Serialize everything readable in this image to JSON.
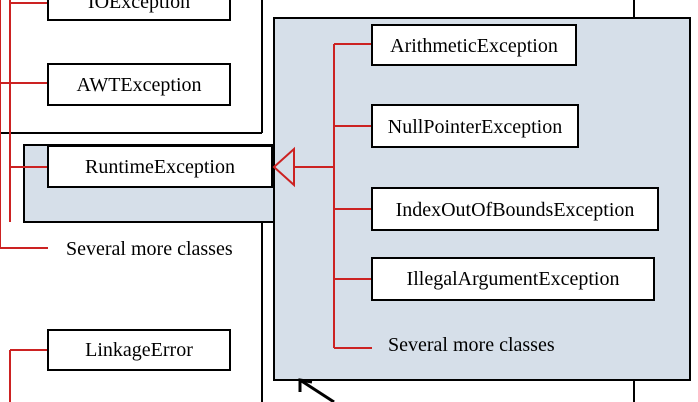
{
  "colors": {
    "connector": "#cc2222",
    "panel_fill": "#d6dfe9",
    "border": "#000000",
    "box_fill": "#ffffff"
  },
  "left_tree": {
    "io_exception": "IOException",
    "awt_exception": "AWTException",
    "runtime_exception": "RuntimeException",
    "several_more": "Several more classes",
    "linkage_error": "LinkageError"
  },
  "runtime_subclasses": {
    "arithmetic": "ArithmeticException",
    "null_pointer": "NullPointerException",
    "index_out_of_bounds": "IndexOutOfBoundsException",
    "illegal_argument": "IllegalArgumentException",
    "several_more": "Several more classes"
  }
}
